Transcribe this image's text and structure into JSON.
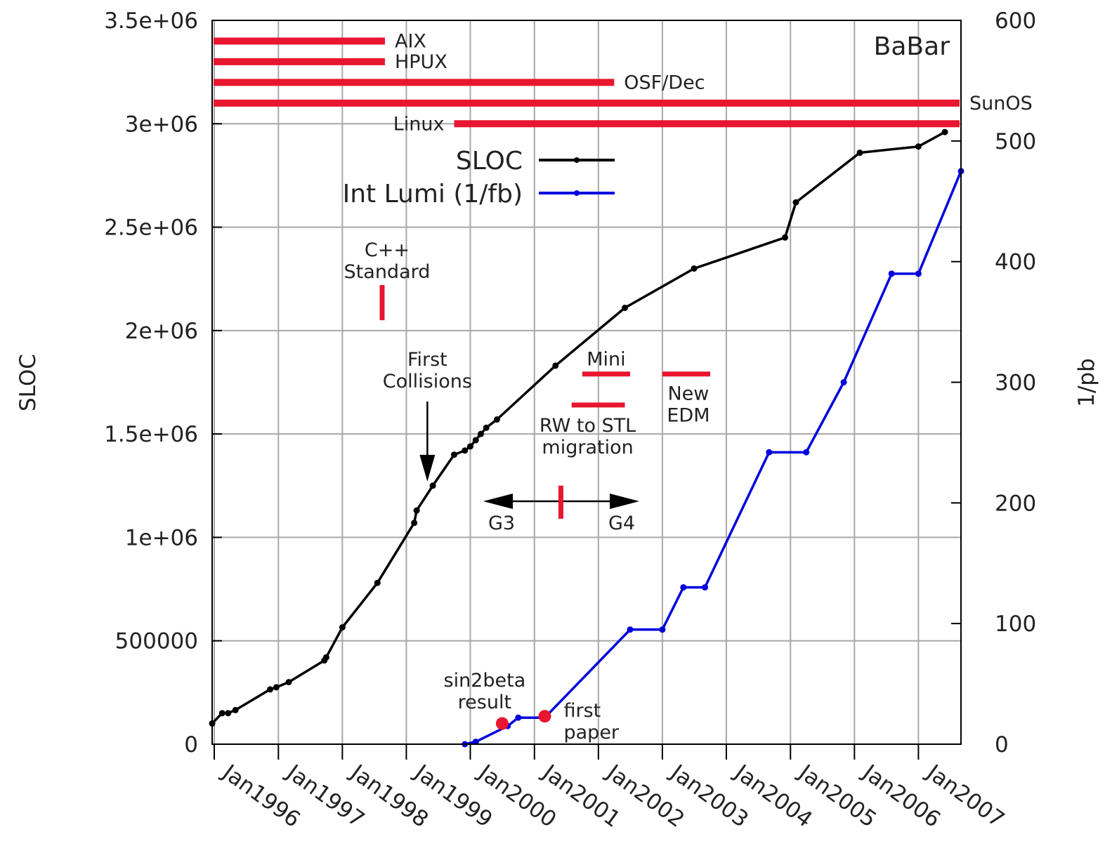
{
  "chart_data": {
    "type": "line",
    "title": "BaBar",
    "ylabel": "SLOC",
    "y2label": "1/pb",
    "ylim": [
      0,
      3500000
    ],
    "y2lim": [
      0,
      600
    ],
    "xlim": [
      "1995-12-20",
      "2007-09-01"
    ],
    "grid": true,
    "legend_position": "top-center",
    "y_ticks": [
      "0",
      "500000",
      "1e+06",
      "1.5e+06",
      "2e+06",
      "2.5e+06",
      "3e+06",
      "3.5e+06"
    ],
    "y_tick_values": [
      0,
      500000,
      1000000,
      1500000,
      2000000,
      2500000,
      3000000,
      3500000
    ],
    "y2_ticks": [
      "0",
      "100",
      "200",
      "300",
      "400",
      "500",
      "600"
    ],
    "y2_tick_values": [
      0,
      100,
      200,
      300,
      400,
      500,
      600
    ],
    "x_ticks": [
      "Jan1996",
      "Jan1997",
      "Jan1998",
      "Jan1999",
      "Jan2000",
      "Jan2001",
      "Jan2002",
      "Jan2003",
      "Jan2004",
      "Jan2005",
      "Jan2006",
      "Jan2007"
    ],
    "x_tick_dates": [
      "1996-01-01",
      "1997-01-01",
      "1998-01-01",
      "1999-01-01",
      "2000-01-01",
      "2001-01-01",
      "2002-01-01",
      "2003-01-01",
      "2004-01-01",
      "2005-01-01",
      "2006-01-01",
      "2007-01-01"
    ],
    "series": [
      {
        "name": "SLOC",
        "color": "#000000",
        "axis": "left",
        "points": [
          [
            "1995-12-20",
            100000
          ],
          [
            "1996-02-15",
            150000
          ],
          [
            "1996-03-20",
            150000
          ],
          [
            "1996-05-01",
            165000
          ],
          [
            "1996-11-15",
            265000
          ],
          [
            "1996-12-20",
            275000
          ],
          [
            "1997-03-01",
            300000
          ],
          [
            "1997-09-20",
            405000
          ],
          [
            "1997-10-01",
            420000
          ],
          [
            "1998-01-01",
            565000
          ],
          [
            "1998-07-20",
            780000
          ],
          [
            "1999-02-15",
            1070000
          ],
          [
            "1999-03-01",
            1130000
          ],
          [
            "1999-06-01",
            1250000
          ],
          [
            "1999-10-01",
            1400000
          ],
          [
            "1999-12-01",
            1420000
          ],
          [
            "2000-01-01",
            1440000
          ],
          [
            "2000-02-01",
            1470000
          ],
          [
            "2000-03-01",
            1500000
          ],
          [
            "2000-04-01",
            1530000
          ],
          [
            "2000-06-01",
            1570000
          ],
          [
            "2001-05-01",
            1830000
          ],
          [
            "2002-06-01",
            2110000
          ],
          [
            "2003-07-01",
            2300000
          ],
          [
            "2004-12-01",
            2450000
          ],
          [
            "2005-02-01",
            2620000
          ],
          [
            "2006-02-01",
            2860000
          ],
          [
            "2007-01-01",
            2890000
          ],
          [
            "2007-06-01",
            2960000
          ]
        ]
      },
      {
        "name": "Int Lumi (1/fb)",
        "color": "#0000dd",
        "axis": "right",
        "points": [
          [
            "1999-12-01",
            0
          ],
          [
            "2000-02-01",
            2
          ],
          [
            "2000-08-01",
            15
          ],
          [
            "2000-10-01",
            22
          ],
          [
            "2001-03-01",
            22
          ],
          [
            "2002-07-01",
            95
          ],
          [
            "2003-01-01",
            95
          ],
          [
            "2003-05-01",
            130
          ],
          [
            "2003-09-01",
            130
          ],
          [
            "2004-09-01",
            242
          ],
          [
            "2005-04-01",
            242
          ],
          [
            "2005-11-01",
            300
          ],
          [
            "2006-08-01",
            390
          ],
          [
            "2007-01-01",
            390
          ],
          [
            "2007-09-01",
            475
          ]
        ]
      }
    ],
    "platforms": [
      {
        "label": "AIX",
        "start": "1995-12-20",
        "end": "1998-09-01",
        "level": 3400000,
        "label_pos": "right"
      },
      {
        "label": "HPUX",
        "start": "1995-12-20",
        "end": "1998-09-01",
        "level": 3300000,
        "label_pos": "right"
      },
      {
        "label": "OSF/Dec",
        "start": "1995-12-20",
        "end": "2002-04-01",
        "level": 3200000,
        "label_pos": "right"
      },
      {
        "label": "SunOS",
        "start": "1995-12-20",
        "end": "2007-09-01",
        "level": 3100000,
        "label_pos": "right"
      },
      {
        "label": "Linux",
        "start": "1999-10-01",
        "end": "2007-09-01",
        "level": 3000000,
        "label_pos": "left"
      }
    ],
    "annotations": {
      "cpp_standard": {
        "lines": [
          "C++",
          "Standard"
        ],
        "date": "1998-09-01",
        "bar": [
          2050000,
          2220000
        ]
      },
      "first_collisions": {
        "lines": [
          "First",
          "Collisions"
        ],
        "arrow_to": [
          "1999-05-01",
          1270000
        ]
      },
      "mini": {
        "label": "Mini",
        "start": "2001-10-01",
        "end": "2002-07-01",
        "level": 1790000
      },
      "new_edm": {
        "lines": [
          "New",
          "EDM"
        ],
        "start": "2003-01-01",
        "end": "2003-10-01",
        "level": 1790000
      },
      "rw_to_stl": {
        "lines": [
          "RW to STL",
          "migration"
        ],
        "start": "2001-08-01",
        "end": "2002-06-01",
        "level": 1640000
      },
      "g3": {
        "label": "G3"
      },
      "g4": {
        "label": "G4"
      },
      "g3_g4_switch": {
        "date": "2001-06-01",
        "span": [
          1090000,
          1250000
        ]
      },
      "sin2beta": {
        "lines": [
          "sin2beta",
          "result"
        ],
        "date": "2000-07-01",
        "value": 100000
      },
      "first_paper": {
        "lines": [
          "first",
          "paper"
        ],
        "date": "2001-03-01",
        "value": 135000
      }
    }
  }
}
